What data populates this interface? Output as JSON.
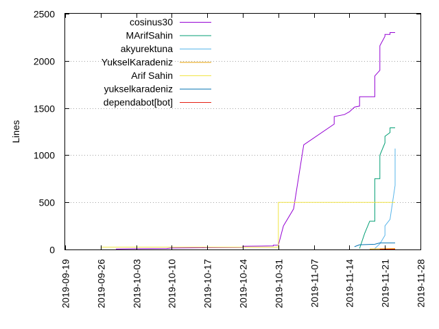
{
  "chart_data": {
    "type": "line",
    "title": "",
    "xlabel": "",
    "ylabel": "Lines",
    "xlim": [
      "2019-09-19",
      "2019-11-28"
    ],
    "ylim": [
      0,
      2500
    ],
    "x_ticks": [
      "2019-09-19",
      "2019-09-26",
      "2019-10-03",
      "2019-10-10",
      "2019-10-17",
      "2019-10-24",
      "2019-10-31",
      "2019-11-07",
      "2019-11-14",
      "2019-11-21",
      "2019-11-28"
    ],
    "y_ticks": [
      0,
      500,
      1000,
      1500,
      2000,
      2500
    ],
    "grid": "horizontal dotted",
    "legend_position": "top-left",
    "series": [
      {
        "name": "cosinus30",
        "color": "#9400d3",
        "points": [
          [
            "2019-09-29",
            5
          ],
          [
            "2019-10-03",
            8
          ],
          [
            "2019-10-09",
            10
          ],
          [
            "2019-10-10",
            15
          ],
          [
            "2019-10-16",
            18
          ],
          [
            "2019-10-17",
            20
          ],
          [
            "2019-10-24",
            22
          ],
          [
            "2019-10-24",
            35
          ],
          [
            "2019-10-30",
            38
          ],
          [
            "2019-10-30",
            45
          ],
          [
            "2019-10-31",
            45
          ],
          [
            "2019-11-01",
            250
          ],
          [
            "2019-11-03",
            430
          ],
          [
            "2019-11-05",
            1110
          ],
          [
            "2019-11-11",
            1330
          ],
          [
            "2019-11-11",
            1410
          ],
          [
            "2019-11-13",
            1430
          ],
          [
            "2019-11-14",
            1460
          ],
          [
            "2019-11-15",
            1510
          ],
          [
            "2019-11-16",
            1520
          ],
          [
            "2019-11-16",
            1620
          ],
          [
            "2019-11-19",
            1620
          ],
          [
            "2019-11-19",
            1840
          ],
          [
            "2019-11-20",
            1900
          ],
          [
            "2019-11-20",
            2160
          ],
          [
            "2019-11-21",
            2260
          ],
          [
            "2019-11-21",
            2280
          ],
          [
            "2019-11-22",
            2280
          ],
          [
            "2019-11-22",
            2300
          ],
          [
            "2019-11-23",
            2300
          ]
        ]
      },
      {
        "name": "MArifSahin",
        "color": "#009e73",
        "points": [
          [
            "2019-11-16",
            10
          ],
          [
            "2019-11-17",
            170
          ],
          [
            "2019-11-18",
            300
          ],
          [
            "2019-11-19",
            300
          ],
          [
            "2019-11-19",
            500
          ],
          [
            "2019-11-19",
            750
          ],
          [
            "2019-11-20",
            750
          ],
          [
            "2019-11-20",
            1000
          ],
          [
            "2019-11-21",
            1130
          ],
          [
            "2019-11-21",
            1200
          ],
          [
            "2019-11-22",
            1240
          ],
          [
            "2019-11-22",
            1290
          ],
          [
            "2019-11-23",
            1290
          ]
        ]
      },
      {
        "name": "akyurektuna",
        "color": "#56b4e9",
        "points": [
          [
            "2019-11-19",
            10
          ],
          [
            "2019-11-20",
            60
          ],
          [
            "2019-11-21",
            150
          ],
          [
            "2019-11-21",
            250
          ],
          [
            "2019-11-22",
            320
          ],
          [
            "2019-11-23",
            680
          ],
          [
            "2019-11-23",
            1070
          ]
        ]
      },
      {
        "name": "YukselKaradeniz",
        "color": "#e69f00",
        "points": [
          [
            "2019-11-18",
            5
          ],
          [
            "2019-11-23",
            10
          ]
        ]
      },
      {
        "name": "Arif Sahin",
        "color": "#f0e442",
        "points": [
          [
            "2019-09-26",
            25
          ],
          [
            "2019-10-31",
            25
          ],
          [
            "2019-10-31",
            500
          ],
          [
            "2019-11-23",
            500
          ]
        ]
      },
      {
        "name": "yukselkaradeniz",
        "color": "#0072b2",
        "points": [
          [
            "2019-11-15",
            30
          ],
          [
            "2019-11-16",
            50
          ],
          [
            "2019-11-19",
            55
          ],
          [
            "2019-11-20",
            70
          ],
          [
            "2019-11-23",
            70
          ]
        ]
      },
      {
        "name": "dependabot[bot]",
        "color": "#e51e10",
        "points": [
          [
            "2019-11-20",
            2
          ],
          [
            "2019-11-23",
            3
          ]
        ]
      }
    ]
  }
}
